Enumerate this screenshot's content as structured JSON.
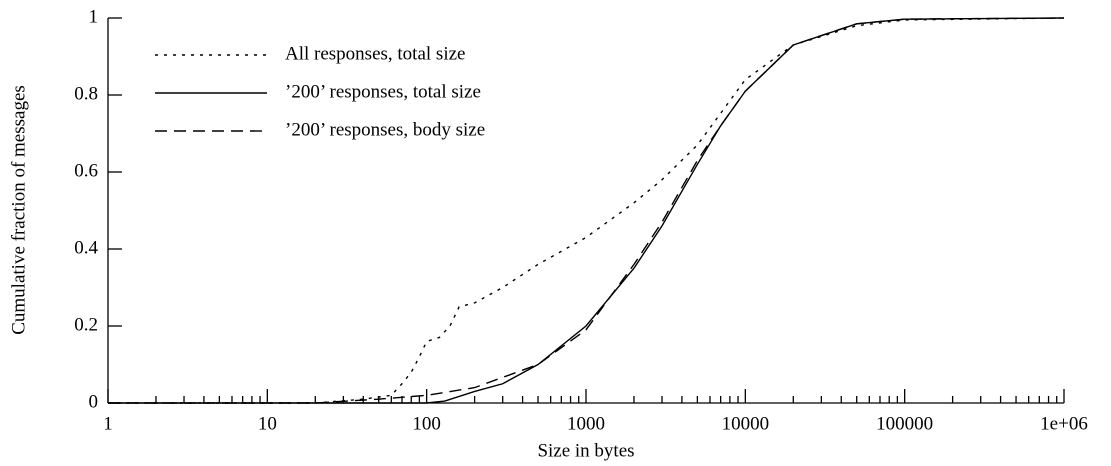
{
  "chart_data": {
    "type": "line",
    "xlabel": "Size in bytes",
    "ylabel": "Cumulative fraction of messages",
    "xscale": "log",
    "xlim": [
      1,
      1000000
    ],
    "xticks": [
      1,
      10,
      100,
      1000,
      10000,
      100000,
      {
        "value": 1000000,
        "label": "1e+06"
      }
    ],
    "xminorticks": [
      2,
      3,
      4,
      5,
      6,
      7,
      8,
      9,
      20,
      30,
      40,
      50,
      60,
      70,
      80,
      90,
      200,
      300,
      400,
      500,
      600,
      700,
      800,
      900,
      2000,
      3000,
      4000,
      5000,
      6000,
      7000,
      8000,
      9000,
      20000,
      30000,
      40000,
      50000,
      60000,
      70000,
      80000,
      90000,
      200000,
      300000,
      400000,
      500000,
      600000,
      700000,
      800000,
      900000
    ],
    "ylim": [
      0,
      1
    ],
    "yticks": [
      0,
      0.2,
      0.4,
      0.6,
      0.8,
      1
    ],
    "legend": "upper left",
    "series": [
      {
        "name": "All responses, total size",
        "color": "#000000",
        "dash": "dotted",
        "x": [
          1,
          20,
          40,
          60,
          70,
          80,
          90,
          100,
          120,
          140,
          160,
          200,
          300,
          500,
          1000,
          2000,
          3000,
          5000,
          10000,
          20000,
          50000,
          100000,
          1000000
        ],
        "values": [
          0,
          0,
          0.01,
          0.02,
          0.05,
          0.08,
          0.12,
          0.16,
          0.17,
          0.2,
          0.25,
          0.26,
          0.3,
          0.36,
          0.43,
          0.52,
          0.58,
          0.67,
          0.84,
          0.93,
          0.98,
          0.995,
          1
        ]
      },
      {
        "name": "’200’ responses, total size",
        "color": "#000000",
        "dash": "solid",
        "x": [
          1,
          100,
          130,
          200,
          300,
          500,
          1000,
          2000,
          3000,
          5000,
          7000,
          10000,
          20000,
          50000,
          100000,
          1000000
        ],
        "values": [
          0,
          0,
          0.005,
          0.03,
          0.05,
          0.1,
          0.2,
          0.35,
          0.46,
          0.62,
          0.72,
          0.81,
          0.93,
          0.985,
          0.997,
          1
        ]
      },
      {
        "name": "’200’ responses, body size",
        "color": "#000000",
        "dash": "dashed",
        "x": [
          1,
          20,
          50,
          100,
          200,
          500,
          1000,
          2000,
          3000,
          5000,
          7000,
          10000,
          20000,
          50000,
          100000,
          1000000
        ],
        "values": [
          0,
          0,
          0.01,
          0.02,
          0.04,
          0.1,
          0.19,
          0.36,
          0.47,
          0.63,
          0.72,
          0.81,
          0.93,
          0.985,
          0.997,
          1
        ]
      }
    ]
  }
}
